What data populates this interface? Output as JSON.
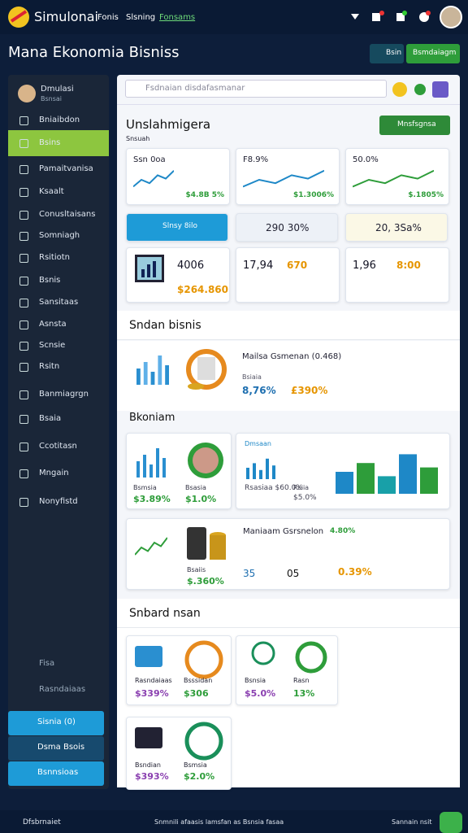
{
  "header": {
    "logo": "Simulonai",
    "nav": [
      "Fonis",
      "Slsning",
      "Fonsams"
    ]
  },
  "page": {
    "title": "Mana Ekonomia Bisniss",
    "buttons": [
      "Bsin",
      "Bsmdaiagm"
    ]
  },
  "sidebar": {
    "profile": {
      "name": "Dmulasi",
      "role": "Bsnsai"
    },
    "items": [
      "Bniaibdon",
      "Bsins",
      "Pamaitvanisa",
      "Ksaalt",
      "Conusltaisans",
      "Somniagh",
      "Rsitiotn",
      "Bsnis",
      "Sansitaas",
      "Asnsta",
      "Scnsie",
      "Rsitn",
      "Banmiagrgn",
      "Bsaia",
      "Ccotitasn",
      "Mngain",
      "Nonyfistd"
    ],
    "footer_items": [
      "Fisa",
      "Rasndaiaas"
    ],
    "accounts": [
      "Sisnia (0)",
      "Dsma Bsois",
      "Bsnnsioas"
    ]
  },
  "main": {
    "search": "Fsdnaian disdafasmanar",
    "overview": {
      "title": "Unslahmigera",
      "button": "Mnsfsgnsa",
      "subtitle": "Snsuah",
      "charts": [
        {
          "label": "Ssn 0oa",
          "value": "$4.8B 5%"
        },
        {
          "label": "F8.9%",
          "value": "$1.3006%"
        },
        {
          "label": "50.0%",
          "value": "$.1805%"
        }
      ],
      "strip": [
        "Slnsy 8ilo",
        "290 30%",
        "20, 3Sa%"
      ],
      "stats": [
        {
          "a": "4006",
          "b": "$264.860"
        },
        {
          "a": "17,94",
          "b": "670"
        },
        {
          "a": "1,96",
          "b": "8:00"
        }
      ]
    },
    "section2": {
      "title": "Sndan bisnis",
      "item": {
        "title": "Mailsa Gsmenan (0.468)",
        "label": "Bsiaia",
        "values": [
          "8,76%",
          "£390%"
        ]
      },
      "subtitle": "Bkoniam",
      "cards": [
        {
          "label": "Bsmsia",
          "value": "$3.89%"
        },
        {
          "label": "Bsasia",
          "value": "$1.0%"
        },
        {
          "label": "Dmsaan",
          "value": "Rsasiaa $60.0%"
        },
        {
          "label": "Rsiia",
          "value": "$5.0%"
        }
      ],
      "wide": {
        "title": "Maniaam Gsrsnelon",
        "badge": "4.80%",
        "label": "Bsaiis",
        "value": "$.360%",
        "stats": [
          "35",
          "05",
          "0.39%"
        ]
      }
    },
    "section3": {
      "title": "Snbard nsan",
      "cards": [
        {
          "label": "Rasndaiaas",
          "value": "$339%"
        },
        {
          "label": "Bsssidan",
          "value": "$306"
        },
        {
          "label": "Bsnsia",
          "value": "$5.0%"
        },
        {
          "label": "Rasn",
          "value": "13%"
        },
        {
          "label": "Bsndian",
          "value": "$393%"
        },
        {
          "label": "Bsmsia",
          "value": "$2.0%"
        }
      ]
    }
  },
  "footer": {
    "left": "Dfsbrnaiet",
    "center": "Snmnili afaasis lamsfan as Bsnsia fasaa",
    "right": "Sannain nsit"
  }
}
